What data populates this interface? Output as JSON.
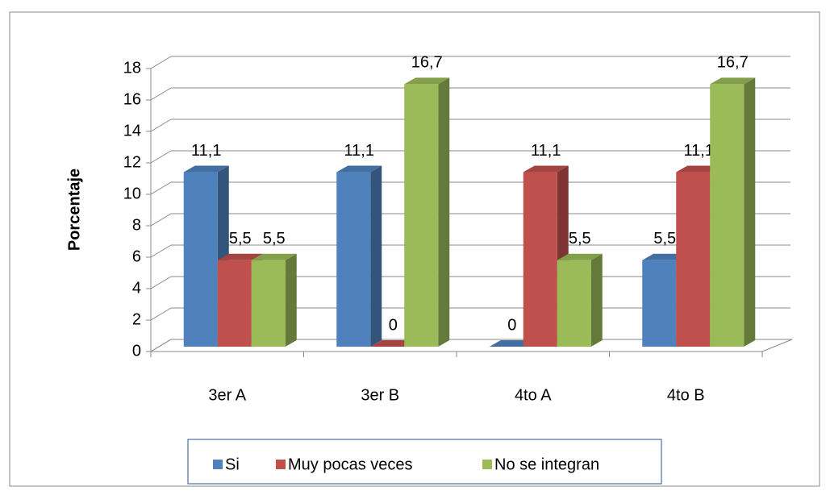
{
  "chart_data": {
    "type": "bar3d",
    "y_label": "Porcentaje",
    "categories": [
      "3er A",
      "3er B",
      "4to A",
      "4to B"
    ],
    "series": [
      {
        "name": "Si",
        "color": "#4f81bd",
        "values": [
          11.1,
          11.1,
          0,
          5.5
        ],
        "value_labels": [
          "11,1",
          "11,1",
          "0",
          "5,5"
        ]
      },
      {
        "name": "Muy pocas veces",
        "color": "#c0504d",
        "values": [
          5.5,
          0,
          11.1,
          11.1
        ],
        "value_labels": [
          "5,5",
          "0",
          "11,1",
          "11,1"
        ]
      },
      {
        "name": "No se integran",
        "color": "#9bbb59",
        "values": [
          5.5,
          16.7,
          5.5,
          16.7
        ],
        "value_labels": [
          "5,5",
          "16,7",
          "5,5",
          "16,7"
        ]
      }
    ],
    "ylim": [
      0,
      18
    ],
    "yticks": [
      0,
      2,
      4,
      6,
      8,
      10,
      12,
      14,
      16,
      18
    ],
    "grid": true,
    "legend": "bottom"
  }
}
